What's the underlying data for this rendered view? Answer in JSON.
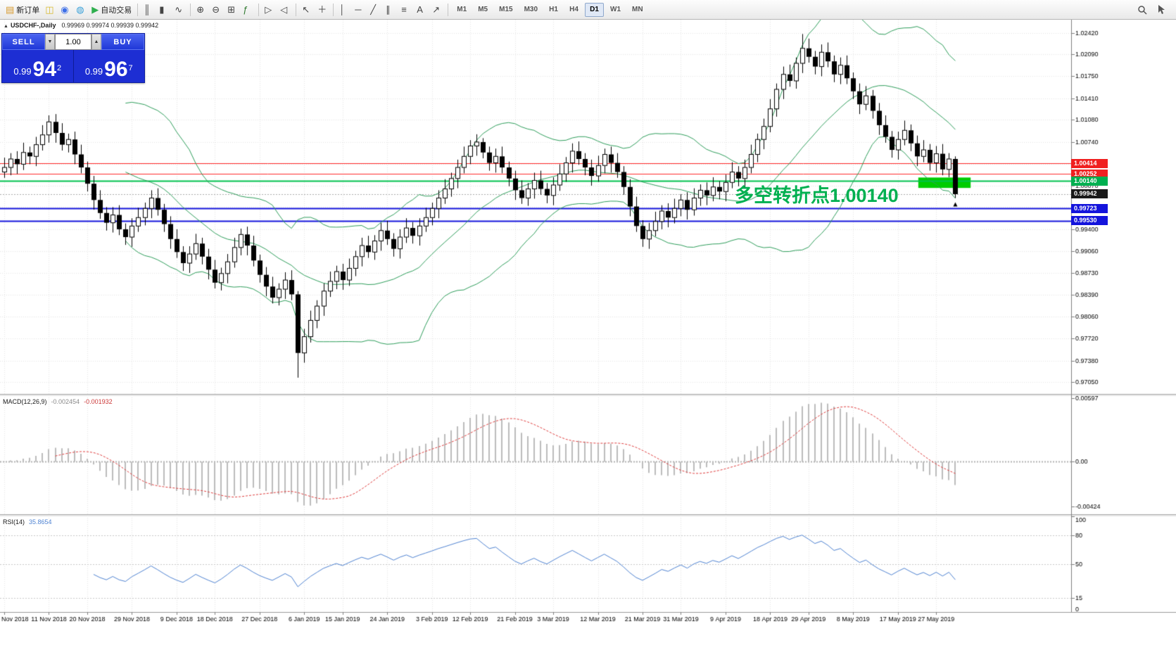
{
  "toolbar": {
    "buttons": [
      {
        "name": "new-order",
        "glyph": "▤",
        "glyph_color": "#d89a2e",
        "label": "新订单"
      },
      {
        "name": "chart-windows",
        "glyph": "◫",
        "glyph_color": "#d8b92e"
      },
      {
        "name": "profiles",
        "glyph": "◉",
        "glyph_color": "#3d6fe8"
      },
      {
        "name": "data-window",
        "glyph": "◍",
        "glyph_color": "#38a0d8"
      },
      {
        "name": "auto-trading",
        "glyph": "▶",
        "glyph_color": "#2faf4e",
        "label": "自动交易"
      },
      {
        "name": "sep"
      },
      {
        "name": "bar-chart-mode",
        "glyph": "║",
        "glyph_color": "#444444"
      },
      {
        "name": "candlestick-mode",
        "glyph": "▮",
        "glyph_color": "#444444"
      },
      {
        "name": "line-chart-mode",
        "glyph": "∿",
        "glyph_color": "#444444"
      },
      {
        "name": "sep"
      },
      {
        "name": "zoom-in",
        "glyph": "⊕",
        "glyph_color": "#444444"
      },
      {
        "name": "zoom-out",
        "glyph": "⊖",
        "glyph_color": "#444444"
      },
      {
        "name": "grid",
        "glyph": "⊞",
        "glyph_color": "#444444"
      },
      {
        "name": "indicators",
        "glyph": "ƒ",
        "glyph_color": "#2f7a2f"
      },
      {
        "name": "sep"
      },
      {
        "name": "auto-scroll",
        "glyph": "▷",
        "glyph_color": "#444444"
      },
      {
        "name": "chart-shift",
        "glyph": "◁",
        "glyph_color": "#444444"
      },
      {
        "name": "sep"
      },
      {
        "name": "cursor-mode",
        "glyph": "↖",
        "glyph_color": "#444444"
      },
      {
        "name": "crosshair-mode",
        "glyph": "＋",
        "glyph_color": "#444444"
      },
      {
        "name": "sep"
      },
      {
        "name": "vertical-line-tool",
        "glyph": "│",
        "glyph_color": "#444444"
      },
      {
        "name": "horizontal-line-tool",
        "glyph": "─",
        "glyph_color": "#444444"
      },
      {
        "name": "trendline-tool",
        "glyph": "╱",
        "glyph_color": "#444444"
      },
      {
        "name": "channel-tool",
        "glyph": "∥",
        "glyph_color": "#444444"
      },
      {
        "name": "fibonacci-tool",
        "glyph": "≡",
        "glyph_color": "#444444"
      },
      {
        "name": "text-tool",
        "glyph": "A",
        "glyph_color": "#444444"
      },
      {
        "name": "arrows-tool",
        "glyph": "↗",
        "glyph_color": "#444444"
      },
      {
        "name": "sep"
      }
    ],
    "timeframes": [
      "M1",
      "M5",
      "M15",
      "M30",
      "H1",
      "H4",
      "D1",
      "W1",
      "MN"
    ],
    "active_timeframe": "D1"
  },
  "chart_header": {
    "collapse_glyph": "▲",
    "symbol": "USDCHF-,Daily",
    "ohlc": "0.99969 0.99974 0.99939 0.99942"
  },
  "trade_panel": {
    "sell_label": "SELL",
    "buy_label": "BUY",
    "volume": "1.00",
    "spin_down_glyph": "▼",
    "spin_up_glyph": "▲",
    "sell_price_prefix": "0.99",
    "sell_price_big": "94",
    "sell_price_sup": "2",
    "buy_price_prefix": "0.99",
    "buy_price_big": "96",
    "buy_price_sup": "7"
  },
  "annotation": {
    "text": "多空转折点1.00140",
    "color": "#00b050"
  },
  "panes": {
    "macd": {
      "title": "MACD(12,26,9)",
      "value_main": "-0.002454",
      "value_signal": "-0.001932",
      "ticks": [
        0.00597,
        0,
        -0.00424
      ],
      "range": [
        -0.005,
        0.0062
      ]
    },
    "rsi": {
      "title": "RSI(14)",
      "value": "35.8654",
      "levels": [
        80,
        50,
        15
      ],
      "ticks": [
        100,
        80,
        50,
        15,
        0
      ],
      "range": [
        0,
        100
      ]
    }
  },
  "price_scale": {
    "ticks": [
      1.0242,
      1.0209,
      1.0175,
      1.0141,
      1.0108,
      1.0074,
      1.004,
      1.0007,
      0.9974,
      0.994,
      0.9906,
      0.9873,
      0.9839,
      0.9806,
      0.9772,
      0.9738,
      0.9705
    ],
    "tags": [
      {
        "name": "resistance-1",
        "value": 1.00414,
        "bg": "#f02020",
        "fg": "#ffffff"
      },
      {
        "name": "resistance-2",
        "value": 1.00252,
        "bg": "#f02020",
        "fg": "#ffffff"
      },
      {
        "name": "pivot",
        "value": 1.0014,
        "bg": "#00b050",
        "fg": "#ffffff"
      },
      {
        "name": "current-price",
        "value": 0.99942,
        "bg": "#1a1a1a",
        "fg": "#ffffff"
      },
      {
        "name": "support-1",
        "value": 0.99723,
        "bg": "#1414dc",
        "fg": "#ffffff"
      },
      {
        "name": "support-2",
        "value": 0.9953,
        "bg": "#1414dc",
        "fg": "#ffffff"
      }
    ]
  },
  "levels": [
    {
      "name": "resistance-line-1",
      "price": 1.00414,
      "color": "#ff2a2a",
      "width": 1
    },
    {
      "name": "resistance-line-2",
      "price": 1.00252,
      "color": "#ff2a2a",
      "width": 1
    },
    {
      "name": "pivot-line",
      "price": 1.0014,
      "color": "#00c24e",
      "width": 2
    },
    {
      "name": "bid-line",
      "price": 0.99942,
      "color": "#aaaaaa",
      "width": 1,
      "dash": [
        2,
        2
      ]
    },
    {
      "name": "support-line-1",
      "price": 0.99723,
      "color": "#1414dc",
      "width": 2
    },
    {
      "name": "support-line-2",
      "price": 0.9953,
      "color": "#1414dc",
      "width": 2
    }
  ],
  "highlight_rect": {
    "start_index": 143.2,
    "end_index": 151.4,
    "price_top": 1.00195,
    "price_bottom": 1.00035,
    "color": "#00cc00"
  },
  "chart_data": {
    "type": "candlestick",
    "symbol": "USDCHF",
    "timeframe": "Daily",
    "price_range": [
      0.9687,
      1.0262
    ],
    "overlays": {
      "bollinger": {
        "period": 20,
        "deviation": 2,
        "color": "#2e9e5b"
      }
    },
    "indicators": {
      "macd": {
        "fast": 12,
        "slow": 26,
        "signal": 9,
        "hist_color": "#bcbcbc",
        "signal_color": "#e03c3c"
      },
      "rsi": {
        "period": 14,
        "color": "#4f83d2"
      }
    },
    "x_labels": [
      "Nov 2018",
      "11 Nov 2018",
      "20 Nov 2018",
      "29 Nov 2018",
      "9 Dec 2018",
      "18 Dec 2018",
      "27 Dec 2018",
      "6 Jan 2019",
      "15 Jan 2019",
      "24 Jan 2019",
      "3 Feb 2019",
      "12 Feb 2019",
      "21 Feb 2019",
      "3 Mar 2019",
      "12 Mar 2019",
      "21 Mar 2019",
      "31 Mar 2019",
      "9 Apr 2019",
      "18 Apr 2019",
      "29 Apr 2019",
      "8 May 2019",
      "17 May 2019",
      "27 May 2019"
    ],
    "x_label_indices": [
      0,
      7,
      13,
      20,
      27,
      33,
      40,
      47,
      53,
      60,
      67,
      73,
      80,
      86,
      93,
      100,
      106,
      113,
      120,
      126,
      133,
      140,
      146
    ],
    "candles": [
      [
        1.0028,
        1.005,
        1.0019,
        1.0035
      ],
      [
        1.0035,
        1.0057,
        1.0023,
        1.0048
      ],
      [
        1.0048,
        1.006,
        1.0025,
        1.004
      ],
      [
        1.004,
        1.0073,
        1.0031,
        1.0058
      ],
      [
        1.0058,
        1.0067,
        1.004,
        1.0052
      ],
      [
        1.0052,
        1.0082,
        1.0037,
        1.007
      ],
      [
        1.007,
        1.01,
        1.0061,
        1.0085
      ],
      [
        1.0085,
        1.0115,
        1.0073,
        1.0105
      ],
      [
        1.0105,
        1.0117,
        1.0073,
        1.0088
      ],
      [
        1.0088,
        1.0103,
        1.0061,
        1.007
      ],
      [
        1.007,
        1.0087,
        1.0058,
        1.0078
      ],
      [
        1.0078,
        1.009,
        1.004,
        1.0055
      ],
      [
        1.0055,
        1.007,
        1.0026,
        1.0035
      ],
      [
        1.0035,
        1.0044,
        0.9998,
        1.001
      ],
      [
        1.001,
        1.0022,
        0.997,
        0.9985
      ],
      [
        0.9985,
        1.0,
        0.9956,
        0.9965
      ],
      [
        0.9965,
        0.9974,
        0.9938,
        0.995
      ],
      [
        0.995,
        0.9974,
        0.9935,
        0.9962
      ],
      [
        0.9962,
        0.9977,
        0.9931,
        0.994
      ],
      [
        0.994,
        0.9949,
        0.9916,
        0.9928
      ],
      [
        0.9928,
        0.9957,
        0.9913,
        0.9945
      ],
      [
        0.9945,
        0.9973,
        0.9936,
        0.9958
      ],
      [
        0.9958,
        0.9981,
        0.9946,
        0.9972
      ],
      [
        0.9972,
        1.0,
        0.9957,
        0.9988
      ],
      [
        0.9988,
        1.0003,
        0.9961,
        0.997
      ],
      [
        0.997,
        0.9979,
        0.9936,
        0.9948
      ],
      [
        0.9948,
        0.996,
        0.991,
        0.9925
      ],
      [
        0.9925,
        0.994,
        0.9896,
        0.9905
      ],
      [
        0.9905,
        0.9914,
        0.9876,
        0.9888
      ],
      [
        0.9888,
        0.9914,
        0.9873,
        0.9902
      ],
      [
        0.9902,
        0.9933,
        0.9893,
        0.9918
      ],
      [
        0.9918,
        0.9927,
        0.9886,
        0.9898
      ],
      [
        0.9898,
        0.991,
        0.9863,
        0.9878
      ],
      [
        0.9878,
        0.9893,
        0.9849,
        0.9858
      ],
      [
        0.9858,
        0.9881,
        0.9846,
        0.9872
      ],
      [
        0.9872,
        0.9902,
        0.9857,
        0.989
      ],
      [
        0.989,
        0.9927,
        0.9881,
        0.9912
      ],
      [
        0.9912,
        0.9941,
        0.99,
        0.9932
      ],
      [
        0.9932,
        0.9944,
        0.99,
        0.9915
      ],
      [
        0.9915,
        0.993,
        0.9883,
        0.9892
      ],
      [
        0.9892,
        0.9901,
        0.9858,
        0.987
      ],
      [
        0.987,
        0.9882,
        0.9837,
        0.9852
      ],
      [
        0.9852,
        0.9867,
        0.9826,
        0.9835
      ],
      [
        0.9835,
        0.9857,
        0.9823,
        0.9848
      ],
      [
        0.9848,
        0.9874,
        0.9833,
        0.9862
      ],
      [
        0.9862,
        0.9877,
        0.9831,
        0.984
      ],
      [
        0.984,
        0.9845,
        0.9712,
        0.975
      ],
      [
        0.975,
        0.9787,
        0.9735,
        0.9775
      ],
      [
        0.9775,
        0.9815,
        0.9766,
        0.98
      ],
      [
        0.98,
        0.9831,
        0.9788,
        0.9822
      ],
      [
        0.9822,
        0.9857,
        0.9807,
        0.9845
      ],
      [
        0.9845,
        0.9875,
        0.9836,
        0.986
      ],
      [
        0.986,
        0.9884,
        0.9848,
        0.9875
      ],
      [
        0.9875,
        0.9887,
        0.9847,
        0.9862
      ],
      [
        0.9862,
        0.9895,
        0.9853,
        0.988
      ],
      [
        0.988,
        0.9907,
        0.9868,
        0.9898
      ],
      [
        0.9898,
        0.9927,
        0.9883,
        0.9915
      ],
      [
        0.9915,
        0.993,
        0.9896,
        0.9905
      ],
      [
        0.9905,
        0.9931,
        0.9893,
        0.9922
      ],
      [
        0.9922,
        0.995,
        0.9907,
        0.9938
      ],
      [
        0.9938,
        0.9953,
        0.9916,
        0.9925
      ],
      [
        0.9925,
        0.9934,
        0.9898,
        0.991
      ],
      [
        0.991,
        0.994,
        0.9895,
        0.9928
      ],
      [
        0.9928,
        0.9957,
        0.9919,
        0.9942
      ],
      [
        0.9942,
        0.9951,
        0.9918,
        0.993
      ],
      [
        0.993,
        0.9957,
        0.9915,
        0.9945
      ],
      [
        0.9945,
        0.9973,
        0.9936,
        0.9958
      ],
      [
        0.9958,
        0.9981,
        0.9946,
        0.9972
      ],
      [
        0.9972,
        1.0,
        0.9957,
        0.9988
      ],
      [
        0.9988,
        1.0017,
        0.9979,
        1.0002
      ],
      [
        1.0002,
        1.0027,
        0.999,
        1.0018
      ],
      [
        1.0018,
        1.0047,
        1.0003,
        1.0035
      ],
      [
        1.0035,
        1.0067,
        1.0026,
        1.0052
      ],
      [
        1.0052,
        1.0077,
        1.004,
        1.0068
      ],
      [
        1.0068,
        1.0086,
        1.0053,
        1.0074
      ],
      [
        1.0074,
        1.008,
        1.0049,
        1.0058
      ],
      [
        1.0058,
        1.0067,
        1.003,
        1.0042
      ],
      [
        1.0042,
        1.0064,
        1.0027,
        1.0052
      ],
      [
        1.0052,
        1.0067,
        1.0026,
        1.0035
      ],
      [
        1.0035,
        1.0044,
        1.0006,
        1.0018
      ],
      [
        1.0018,
        1.003,
        0.9985,
        1.0
      ],
      [
        1.0,
        1.0015,
        0.9979,
        0.9988
      ],
      [
        0.9988,
        1.0011,
        0.9976,
        1.0002
      ],
      [
        1.0002,
        1.0027,
        0.9987,
        1.0015
      ],
      [
        1.0015,
        1.003,
        0.9993,
        1.0002
      ],
      [
        1.0002,
        1.0011,
        0.998,
        0.9992
      ],
      [
        0.9992,
        1.002,
        0.9977,
        1.0008
      ],
      [
        1.0008,
        1.004,
        0.9999,
        1.0025
      ],
      [
        1.0025,
        1.0051,
        1.0013,
        1.0042
      ],
      [
        1.0042,
        1.0072,
        1.0027,
        1.006
      ],
      [
        1.006,
        1.0075,
        1.0039,
        1.0048
      ],
      [
        1.0048,
        1.0057,
        1.0023,
        1.0035
      ],
      [
        1.0035,
        1.0047,
        1.0007,
        1.0022
      ],
      [
        1.0022,
        1.0053,
        1.0013,
        1.0038
      ],
      [
        1.0038,
        1.0064,
        1.0026,
        1.0055
      ],
      [
        1.0055,
        1.0067,
        1.0027,
        1.0042
      ],
      [
        1.0042,
        1.0057,
        1.0019,
        1.0028
      ],
      [
        1.0028,
        1.0037,
        0.9993,
        1.0005
      ],
      [
        1.0005,
        1.0017,
        0.996,
        0.9975
      ],
      [
        0.9975,
        0.999,
        0.9936,
        0.9945
      ],
      [
        0.9945,
        0.9954,
        0.9913,
        0.9925
      ],
      [
        0.9925,
        0.995,
        0.991,
        0.9938
      ],
      [
        0.9938,
        0.9967,
        0.9929,
        0.9952
      ],
      [
        0.9952,
        0.9977,
        0.994,
        0.9968
      ],
      [
        0.9968,
        0.998,
        0.9943,
        0.9958
      ],
      [
        0.9958,
        0.9987,
        0.9949,
        0.9972
      ],
      [
        0.9972,
        0.9994,
        0.996,
        0.9985
      ],
      [
        0.9985,
        0.9997,
        0.9955,
        0.997
      ],
      [
        0.997,
        1.0003,
        0.9961,
        0.9988
      ],
      [
        0.9988,
        1.0009,
        0.9976,
        1.0
      ],
      [
        1.0,
        1.0012,
        0.9977,
        0.9992
      ],
      [
        0.9992,
        1.002,
        0.9983,
        1.0005
      ],
      [
        1.0005,
        1.0014,
        0.9986,
        0.9998
      ],
      [
        0.9998,
        1.0024,
        0.9983,
        1.0012
      ],
      [
        1.0012,
        1.0043,
        1.0003,
        1.0028
      ],
      [
        1.0028,
        1.0037,
        1.0006,
        1.0018
      ],
      [
        1.0018,
        1.0047,
        1.0003,
        1.0035
      ],
      [
        1.0035,
        1.007,
        1.0026,
        1.0055
      ],
      [
        1.0055,
        1.0087,
        1.0043,
        1.0078
      ],
      [
        1.0078,
        1.011,
        1.0063,
        1.0098
      ],
      [
        1.0098,
        1.014,
        1.0089,
        1.0125
      ],
      [
        1.0125,
        1.0164,
        1.0113,
        1.0155
      ],
      [
        1.0155,
        1.019,
        1.014,
        1.0178
      ],
      [
        1.0178,
        1.0193,
        1.0159,
        1.0168
      ],
      [
        1.0168,
        1.0204,
        1.0156,
        1.0195
      ],
      [
        1.0195,
        1.024,
        1.018,
        1.0218
      ],
      [
        1.0218,
        1.0233,
        1.0196,
        1.0205
      ],
      [
        1.0205,
        1.0214,
        1.0178,
        1.019
      ],
      [
        1.019,
        1.0224,
        1.0175,
        1.0212
      ],
      [
        1.0212,
        1.0227,
        1.0189,
        1.0198
      ],
      [
        1.0198,
        1.0207,
        1.0166,
        1.0178
      ],
      [
        1.0178,
        1.0204,
        1.0163,
        1.0192
      ],
      [
        1.0192,
        1.0207,
        1.0163,
        1.0172
      ],
      [
        1.0172,
        1.0181,
        1.014,
        1.0152
      ],
      [
        1.0152,
        1.0164,
        1.0117,
        1.0132
      ],
      [
        1.0132,
        1.016,
        1.0123,
        1.0145
      ],
      [
        1.0145,
        1.0154,
        1.011,
        1.0122
      ],
      [
        1.0122,
        1.0134,
        1.0085,
        1.01
      ],
      [
        1.01,
        1.0115,
        1.0073,
        1.0082
      ],
      [
        1.0082,
        1.0091,
        1.005,
        1.0062
      ],
      [
        1.0062,
        1.009,
        1.0047,
        1.0078
      ],
      [
        1.0078,
        1.0107,
        1.0069,
        1.0092
      ],
      [
        1.0092,
        1.0101,
        1.006,
        1.0072
      ],
      [
        1.0072,
        1.0084,
        1.0037,
        1.0052
      ],
      [
        1.0052,
        1.0077,
        1.0043,
        1.0062
      ],
      [
        1.0062,
        1.0071,
        1.003,
        1.0042
      ],
      [
        1.0042,
        1.0068,
        1.0027,
        1.0056
      ],
      [
        1.0056,
        1.0071,
        1.0023,
        1.0032
      ],
      [
        1.0032,
        1.0057,
        1.002,
        1.0048
      ],
      [
        1.0048,
        1.0052,
        0.9988,
        0.9994
      ]
    ]
  }
}
